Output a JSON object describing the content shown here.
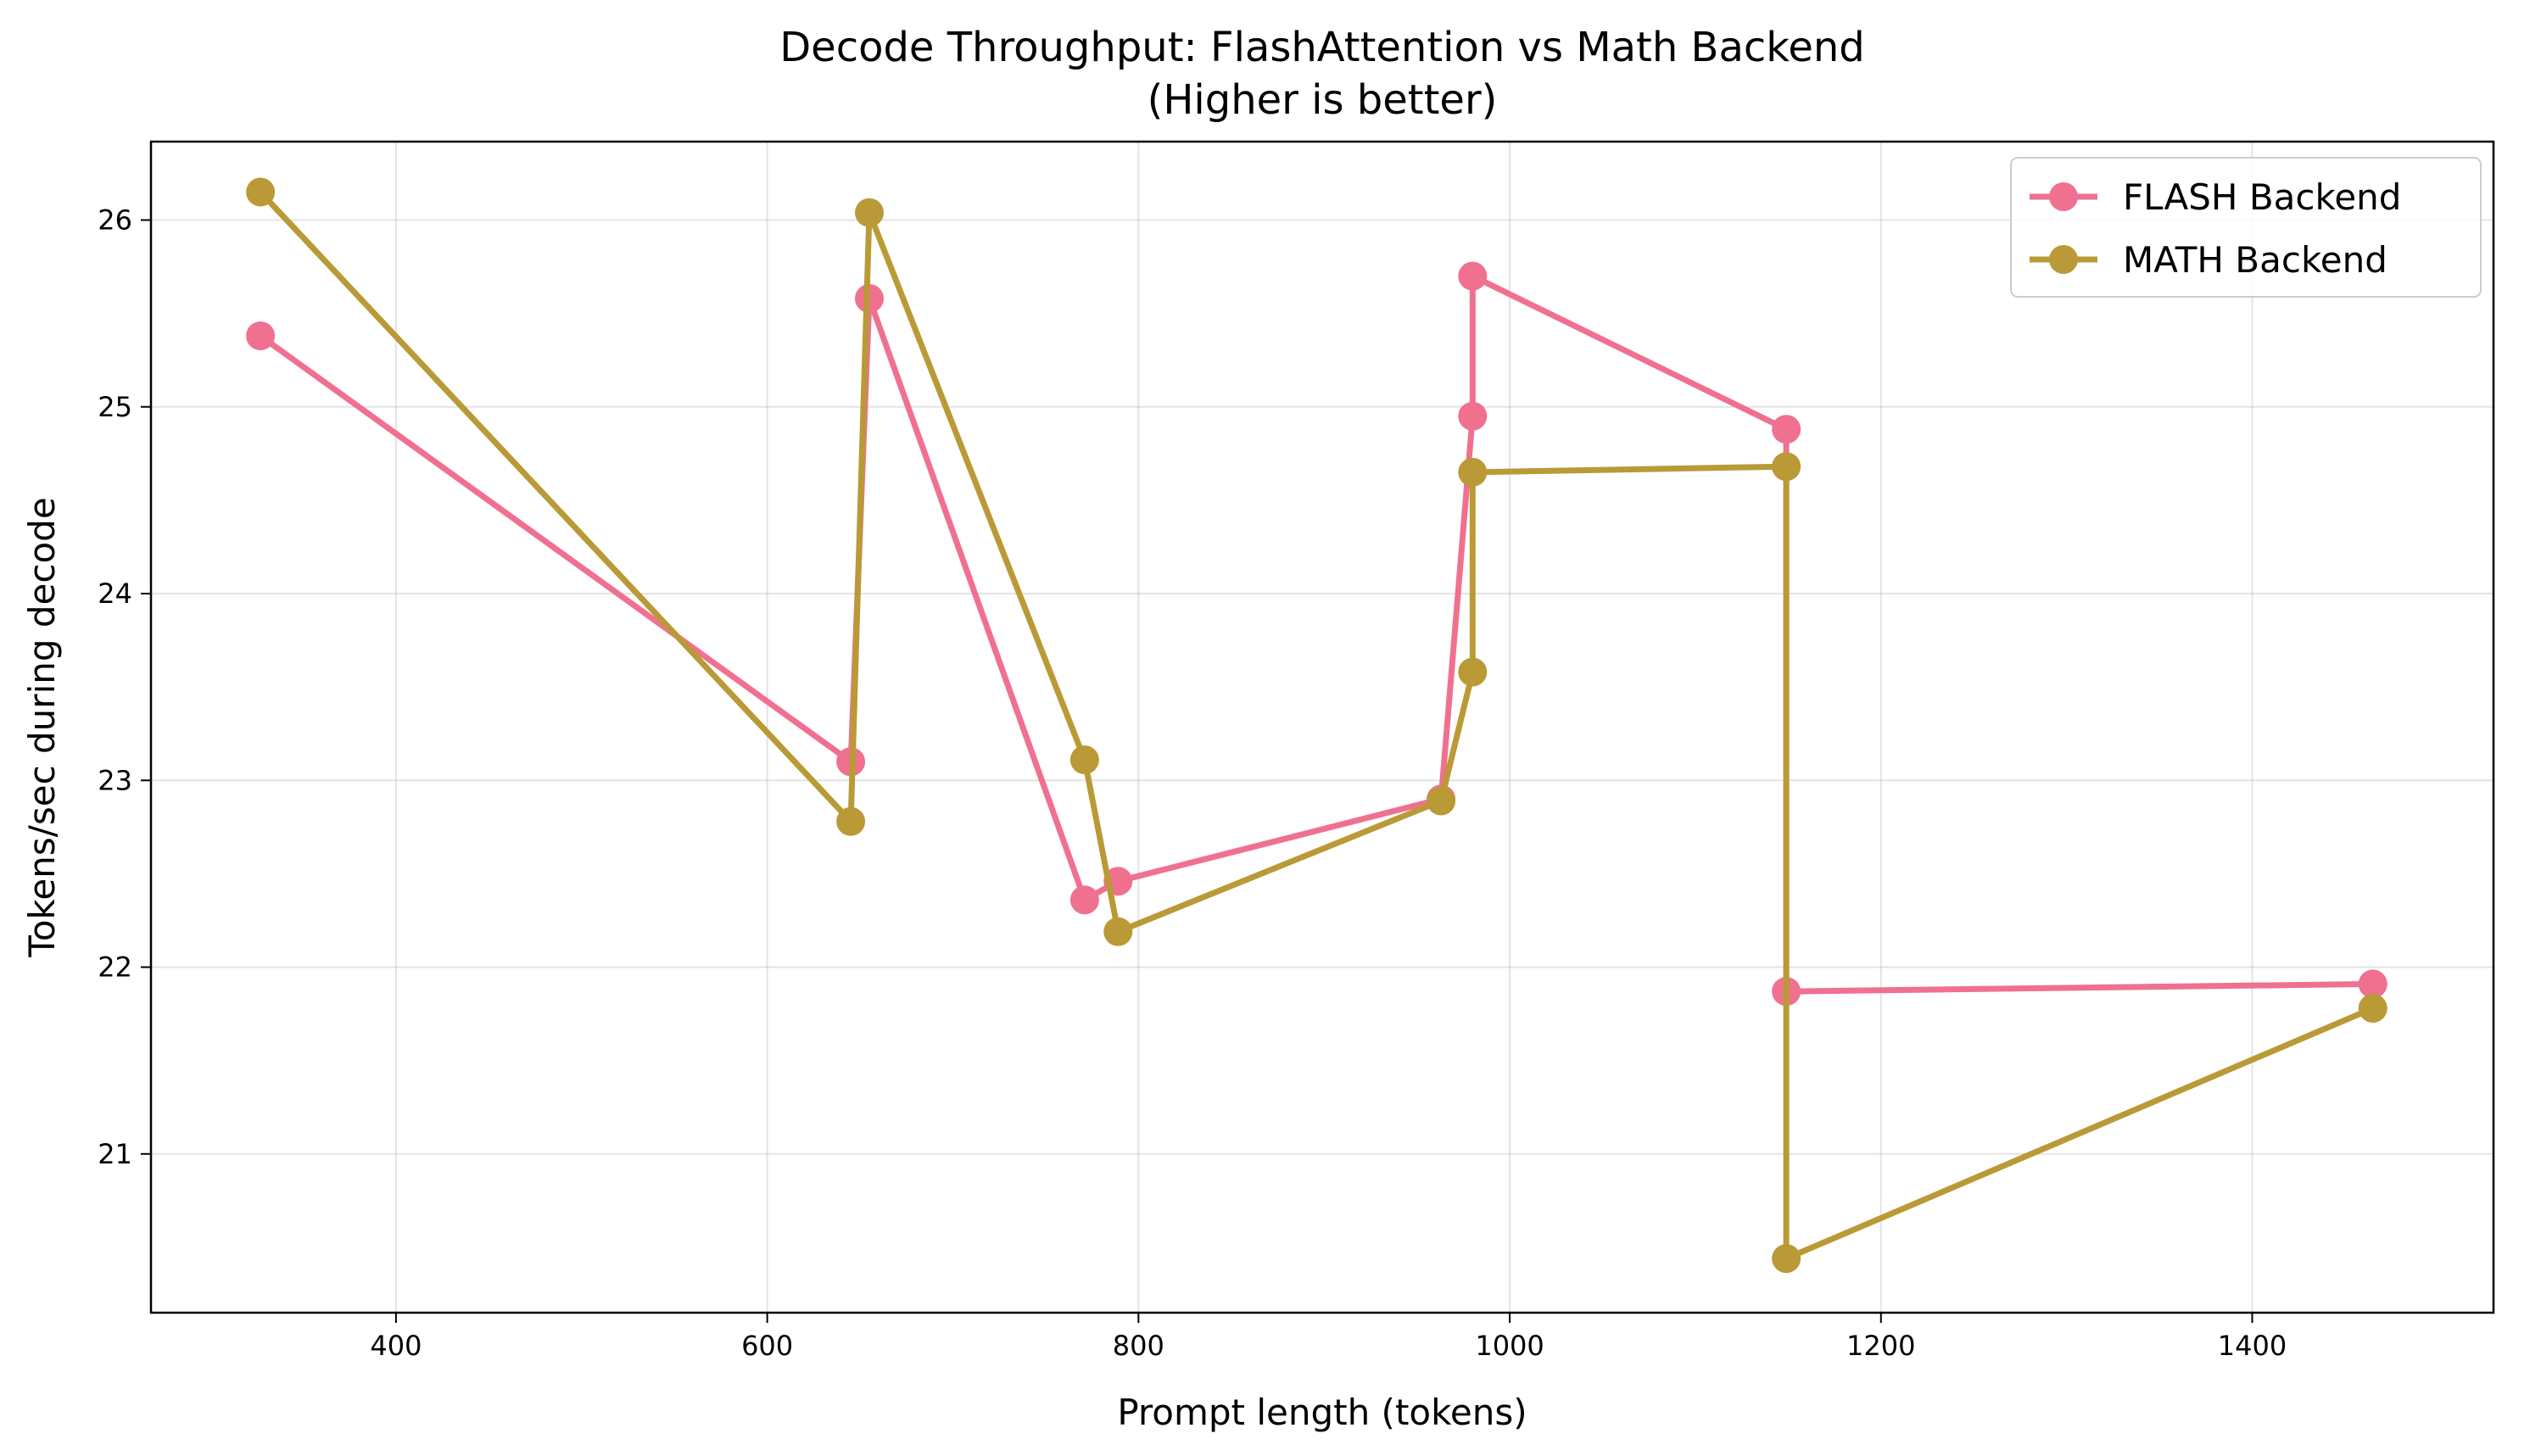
{
  "chart_data": {
    "type": "line",
    "title": "Decode Throughput: FlashAttention vs Math Backend",
    "subtitle": "(Higher is better)",
    "xlabel": "Prompt length (tokens)",
    "ylabel": "Tokens/sec during decode",
    "xlim": [
      268,
      1530
    ],
    "ylim": [
      20.15,
      26.42
    ],
    "xticks": [
      400,
      600,
      800,
      1000,
      1200,
      1400
    ],
    "yticks": [
      21,
      22,
      23,
      24,
      25,
      26
    ],
    "grid": true,
    "legend_position": "top-right",
    "series": [
      {
        "name": "FLASH Backend",
        "color": "#f07090",
        "points": [
          [
            327,
            25.38
          ],
          [
            645,
            23.1
          ],
          [
            655,
            25.58
          ],
          [
            771,
            22.36
          ],
          [
            789,
            22.46
          ],
          [
            963,
            22.9
          ],
          [
            980,
            24.95
          ],
          [
            980,
            25.7
          ],
          [
            1149,
            24.88
          ],
          [
            1149,
            21.87
          ],
          [
            1465,
            21.91
          ]
        ]
      },
      {
        "name": "MATH Backend",
        "color": "#b99a36",
        "points": [
          [
            327,
            26.15
          ],
          [
            645,
            22.78
          ],
          [
            655,
            26.04
          ],
          [
            771,
            23.11
          ],
          [
            789,
            22.19
          ],
          [
            963,
            22.89
          ],
          [
            980,
            23.58
          ],
          [
            980,
            24.65
          ],
          [
            1149,
            24.68
          ],
          [
            1149,
            20.44
          ],
          [
            1465,
            21.78
          ]
        ]
      }
    ]
  }
}
